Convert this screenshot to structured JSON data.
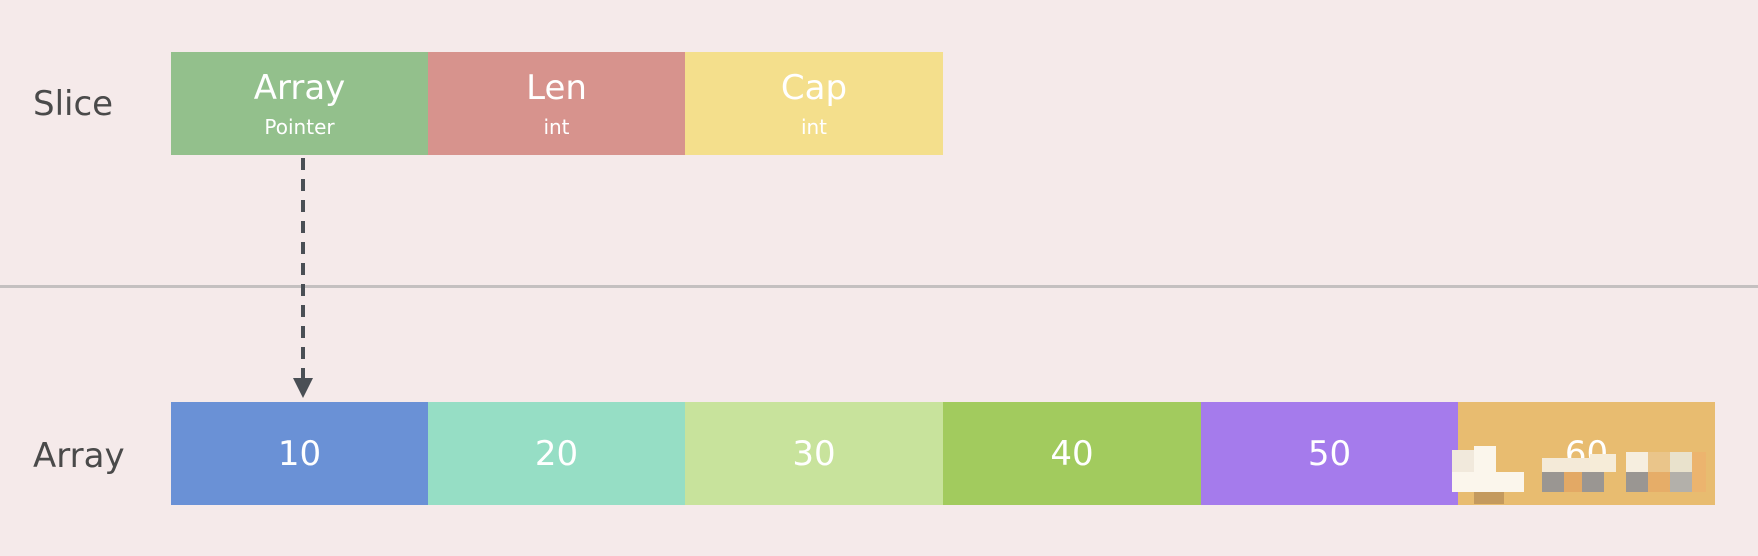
{
  "slice": {
    "label": "Slice",
    "fields": [
      {
        "title": "Array",
        "type": "Pointer",
        "color": "#93c08c"
      },
      {
        "title": "Len",
        "type": "int",
        "color": "#d7938d"
      },
      {
        "title": "Cap",
        "type": "int",
        "color": "#f4df8c"
      }
    ]
  },
  "array": {
    "label": "Array",
    "elements": [
      {
        "value": "10",
        "color": "#6a91d6"
      },
      {
        "value": "20",
        "color": "#96dec5"
      },
      {
        "value": "30",
        "color": "#c8e39c"
      },
      {
        "value": "40",
        "color": "#a2cb5e"
      },
      {
        "value": "50",
        "color": "#a57bec"
      },
      {
        "value": "60",
        "color": "#e8bc70"
      }
    ]
  },
  "arrow": {
    "color": "#4a4f55",
    "style": "dashed"
  },
  "divider_color": "#c4c0c0",
  "background_color": "#f5eaea"
}
